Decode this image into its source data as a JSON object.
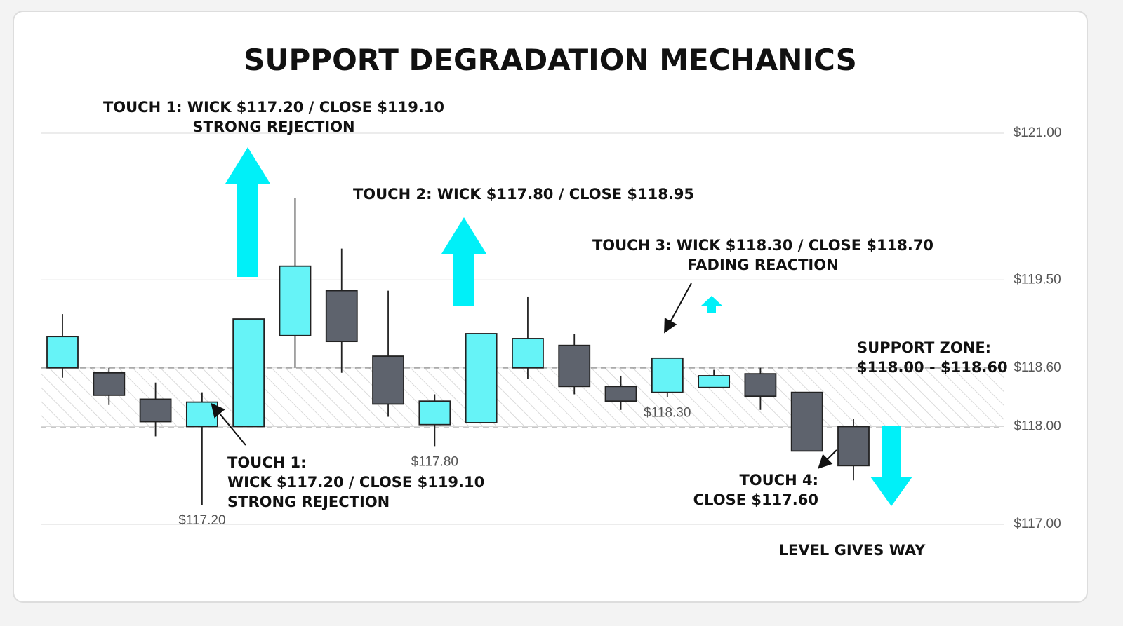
{
  "chart_data": {
    "type": "candlestick",
    "title": "SUPPORT DEGRADATION MECHANICS",
    "ylim": [
      117,
      121
    ],
    "yticks": [
      {
        "value": 121,
        "label": "$121.00"
      },
      {
        "value": 119.5,
        "label": "$119.50"
      },
      {
        "value": 118.6,
        "label": "$118.60"
      },
      {
        "value": 118,
        "label": "$118.00"
      },
      {
        "value": 117,
        "label": "$117.00"
      }
    ],
    "grid": true,
    "up_color": "#66f3f7",
    "down_color": "#5e636d",
    "zone": [
      118.0,
      118.6
    ],
    "zone_label": [
      "SUPPORT ZONE:",
      "$118.00 - $118.60"
    ],
    "candles": [
      {
        "open": 118.6,
        "high": 119.15,
        "low": 118.5,
        "close": 118.92
      },
      {
        "open": 118.55,
        "high": 118.6,
        "low": 118.22,
        "close": 118.32
      },
      {
        "open": 118.28,
        "high": 118.45,
        "low": 117.9,
        "close": 118.05
      },
      {
        "open": 118.0,
        "high": 118.35,
        "low": 117.2,
        "close": 118.25,
        "low_label": "$117.20"
      },
      {
        "open": 118.0,
        "high": 119.1,
        "low": 118.0,
        "close": 119.1
      },
      {
        "open": 118.93,
        "high": 120.34,
        "low": 118.6,
        "close": 119.64
      },
      {
        "open": 119.39,
        "high": 119.82,
        "low": 118.55,
        "close": 118.87
      },
      {
        "open": 118.72,
        "high": 119.39,
        "low": 118.1,
        "close": 118.23
      },
      {
        "open": 118.02,
        "high": 118.33,
        "low": 117.8,
        "close": 118.26,
        "low_label": "$117.80"
      },
      {
        "open": 118.04,
        "high": 118.95,
        "low": 118.04,
        "close": 118.95
      },
      {
        "open": 118.6,
        "high": 119.33,
        "low": 118.49,
        "close": 118.9
      },
      {
        "open": 118.83,
        "high": 118.95,
        "low": 118.33,
        "close": 118.41
      },
      {
        "open": 118.41,
        "high": 118.52,
        "low": 118.17,
        "close": 118.26
      },
      {
        "open": 118.35,
        "high": 118.7,
        "low": 118.3,
        "close": 118.7,
        "low_label": "$118.30"
      },
      {
        "open": 118.4,
        "high": 118.58,
        "low": 118.4,
        "close": 118.52
      },
      {
        "open": 118.54,
        "high": 118.6,
        "low": 118.17,
        "close": 118.31
      },
      {
        "open": 118.35,
        "high": 118.35,
        "low": 117.75,
        "close": 117.75
      },
      {
        "open": 118.0,
        "high": 118.08,
        "low": 117.45,
        "close": 117.6
      }
    ],
    "annotations": [
      {
        "lines": [
          "TOUCH 1: WICK $117.20 / CLOSE $119.10",
          "STRONG REJECTION"
        ]
      },
      {
        "lines": [
          "TOUCH 2: WICK $117.80 / CLOSE $118.95"
        ]
      },
      {
        "lines": [
          "TOUCH 3: WICK $118.30 / CLOSE $118.70",
          "FADING REACTION"
        ]
      },
      {
        "lines": [
          "TOUCH 1:",
          "WICK $117.20 / CLOSE $119.10",
          "STRONG REJECTION"
        ]
      },
      {
        "lines": [
          "TOUCH 4:",
          "CLOSE $117.60"
        ]
      },
      {
        "lines": [
          "LEVEL GIVES WAY"
        ]
      }
    ]
  }
}
